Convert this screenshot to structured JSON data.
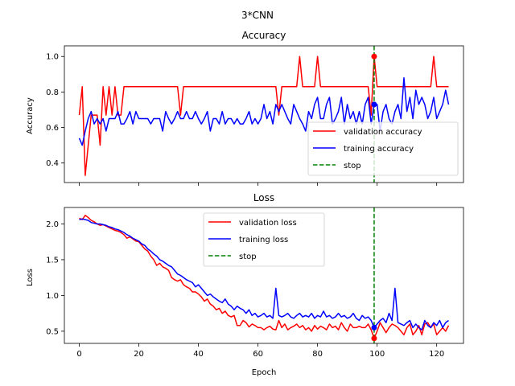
{
  "suptitle": "3*CNN",
  "chart_data": [
    {
      "type": "line",
      "title": "Accuracy",
      "xlabel": "",
      "ylabel": "Accuracy",
      "xlim": [
        -5,
        129
      ],
      "ylim": [
        0.29,
        1.06
      ],
      "xticks": [
        0,
        20,
        40,
        60,
        80,
        100,
        120
      ],
      "show_xtick_labels": false,
      "yticks": [
        0.4,
        0.6,
        0.8,
        1.0
      ],
      "ytick_labels": [
        "0.4",
        "0.6",
        "0.8",
        "1.0"
      ],
      "legend_position": "lower-right",
      "series": [
        {
          "name": "validation accuracy",
          "color": "#ff0000",
          "style": "solid",
          "x": [
            0,
            1,
            2,
            3,
            4,
            5,
            6,
            7,
            8,
            9,
            10,
            11,
            12,
            13,
            14,
            15,
            16,
            17,
            18,
            19,
            20,
            21,
            22,
            23,
            24,
            25,
            26,
            27,
            28,
            29,
            30,
            31,
            32,
            33,
            34,
            35,
            36,
            37,
            38,
            39,
            40,
            41,
            42,
            43,
            44,
            45,
            46,
            47,
            48,
            49,
            50,
            51,
            52,
            53,
            54,
            55,
            56,
            57,
            58,
            59,
            60,
            61,
            62,
            63,
            64,
            65,
            66,
            67,
            68,
            69,
            70,
            71,
            72,
            73,
            74,
            75,
            76,
            77,
            78,
            79,
            80,
            81,
            82,
            83,
            84,
            85,
            86,
            87,
            88,
            89,
            90,
            91,
            92,
            93,
            94,
            95,
            96,
            97,
            98,
            99,
            100,
            101,
            102,
            103,
            104,
            105,
            106,
            107,
            108,
            109,
            110,
            111,
            112,
            113,
            114,
            115,
            116,
            117,
            118,
            119,
            120,
            121,
            122,
            123,
            124
          ],
          "values": [
            0.67,
            0.83,
            0.33,
            0.5,
            0.67,
            0.67,
            0.67,
            0.5,
            0.83,
            0.67,
            0.83,
            0.67,
            0.83,
            0.67,
            0.67,
            0.83,
            0.83,
            0.83,
            0.83,
            0.83,
            0.83,
            0.83,
            0.83,
            0.83,
            0.83,
            0.83,
            0.83,
            0.83,
            0.83,
            0.83,
            0.83,
            0.83,
            0.83,
            0.83,
            0.67,
            0.83,
            0.83,
            0.83,
            0.83,
            0.83,
            0.83,
            0.83,
            0.83,
            0.83,
            0.83,
            0.83,
            0.83,
            0.83,
            0.83,
            0.83,
            0.83,
            0.83,
            0.83,
            0.83,
            0.83,
            0.83,
            0.83,
            0.83,
            0.83,
            0.83,
            0.83,
            0.83,
            0.83,
            0.83,
            0.83,
            0.83,
            0.83,
            0.67,
            0.83,
            0.83,
            0.83,
            0.83,
            0.83,
            0.83,
            1.0,
            0.83,
            0.83,
            0.83,
            0.83,
            0.83,
            1.0,
            0.83,
            0.83,
            0.83,
            0.83,
            0.83,
            0.83,
            0.83,
            0.83,
            0.83,
            0.83,
            0.83,
            0.83,
            0.83,
            0.83,
            0.83,
            0.83,
            0.83,
            0.67,
            1.0,
            0.83,
            0.83,
            0.83,
            0.83,
            0.83,
            0.83,
            0.83,
            0.83,
            0.83,
            0.83,
            0.83,
            0.83,
            0.83,
            0.83,
            0.83,
            0.83,
            0.83,
            0.83,
            0.83,
            1.0,
            0.83,
            0.83,
            0.83,
            0.83,
            0.83
          ]
        },
        {
          "name": "training accuracy",
          "color": "#0000ff",
          "style": "solid",
          "x": [
            0,
            1,
            2,
            3,
            4,
            5,
            6,
            7,
            8,
            9,
            10,
            11,
            12,
            13,
            14,
            15,
            16,
            17,
            18,
            19,
            20,
            21,
            22,
            23,
            24,
            25,
            26,
            27,
            28,
            29,
            30,
            31,
            32,
            33,
            34,
            35,
            36,
            37,
            38,
            39,
            40,
            41,
            42,
            43,
            44,
            45,
            46,
            47,
            48,
            49,
            50,
            51,
            52,
            53,
            54,
            55,
            56,
            57,
            58,
            59,
            60,
            61,
            62,
            63,
            64,
            65,
            66,
            67,
            68,
            69,
            70,
            71,
            72,
            73,
            74,
            75,
            76,
            77,
            78,
            79,
            80,
            81,
            82,
            83,
            84,
            85,
            86,
            87,
            88,
            89,
            90,
            91,
            92,
            93,
            94,
            95,
            96,
            97,
            98,
            99,
            100,
            101,
            102,
            103,
            104,
            105,
            106,
            107,
            108,
            109,
            110,
            111,
            112,
            113,
            114,
            115,
            116,
            117,
            118,
            119,
            120,
            121,
            122,
            123,
            124
          ],
          "values": [
            0.54,
            0.5,
            0.58,
            0.65,
            0.69,
            0.62,
            0.65,
            0.62,
            0.65,
            0.58,
            0.65,
            0.65,
            0.65,
            0.69,
            0.62,
            0.62,
            0.65,
            0.69,
            0.62,
            0.69,
            0.65,
            0.65,
            0.65,
            0.65,
            0.62,
            0.65,
            0.65,
            0.65,
            0.58,
            0.69,
            0.65,
            0.62,
            0.65,
            0.69,
            0.65,
            0.65,
            0.69,
            0.65,
            0.65,
            0.69,
            0.65,
            0.62,
            0.65,
            0.69,
            0.58,
            0.65,
            0.65,
            0.62,
            0.69,
            0.62,
            0.65,
            0.65,
            0.62,
            0.65,
            0.62,
            0.62,
            0.65,
            0.69,
            0.62,
            0.65,
            0.62,
            0.65,
            0.73,
            0.65,
            0.69,
            0.62,
            0.73,
            0.69,
            0.73,
            0.69,
            0.65,
            0.62,
            0.73,
            0.69,
            0.65,
            0.62,
            0.58,
            0.69,
            0.65,
            0.73,
            0.77,
            0.65,
            0.65,
            0.73,
            0.77,
            0.62,
            0.65,
            0.69,
            0.77,
            0.62,
            0.73,
            0.65,
            0.69,
            0.62,
            0.69,
            0.62,
            0.73,
            0.77,
            0.62,
            0.73,
            0.73,
            0.58,
            0.69,
            0.73,
            0.65,
            0.62,
            0.69,
            0.73,
            0.65,
            0.88,
            0.69,
            0.77,
            0.65,
            0.81,
            0.73,
            0.77,
            0.73,
            0.65,
            0.69,
            0.77,
            0.65,
            0.69,
            0.73,
            0.81,
            0.73
          ]
        },
        {
          "name": "stop",
          "color": "#008000",
          "style": "dashed",
          "vline_x": 99
        }
      ],
      "markers": [
        {
          "x": 99,
          "y": 1.0,
          "color": "#ff0000"
        },
        {
          "x": 99,
          "y": 0.73,
          "color": "#0000ff"
        }
      ]
    },
    {
      "type": "line",
      "title": "Loss",
      "xlabel": "Epoch",
      "ylabel": "Loss",
      "xlim": [
        -5,
        129
      ],
      "ylim": [
        0.33,
        2.23
      ],
      "xticks": [
        0,
        20,
        40,
        60,
        80,
        100,
        120
      ],
      "show_xtick_labels": true,
      "yticks": [
        0.5,
        1.0,
        1.5,
        2.0
      ],
      "ytick_labels": [
        "0.5",
        "1.0",
        "1.5",
        "2.0"
      ],
      "legend_position": "upper-center",
      "series": [
        {
          "name": "validation loss",
          "color": "#ff0000",
          "style": "solid",
          "x": [
            0,
            1,
            2,
            3,
            4,
            5,
            6,
            7,
            8,
            9,
            10,
            11,
            12,
            13,
            14,
            15,
            16,
            17,
            18,
            19,
            20,
            21,
            22,
            23,
            24,
            25,
            26,
            27,
            28,
            29,
            30,
            31,
            32,
            33,
            34,
            35,
            36,
            37,
            38,
            39,
            40,
            41,
            42,
            43,
            44,
            45,
            46,
            47,
            48,
            49,
            50,
            51,
            52,
            53,
            54,
            55,
            56,
            57,
            58,
            59,
            60,
            61,
            62,
            63,
            64,
            65,
            66,
            67,
            68,
            69,
            70,
            71,
            72,
            73,
            74,
            75,
            76,
            77,
            78,
            79,
            80,
            81,
            82,
            83,
            84,
            85,
            86,
            87,
            88,
            89,
            90,
            91,
            92,
            93,
            94,
            95,
            96,
            97,
            98,
            99,
            100,
            101,
            102,
            103,
            104,
            105,
            106,
            107,
            108,
            109,
            110,
            111,
            112,
            113,
            114,
            115,
            116,
            117,
            118,
            119,
            120,
            121,
            122,
            123,
            124
          ],
          "values": [
            2.08,
            2.06,
            2.12,
            2.09,
            2.05,
            2.03,
            2.0,
            1.98,
            1.99,
            1.97,
            1.95,
            1.93,
            1.91,
            1.9,
            1.88,
            1.85,
            1.8,
            1.82,
            1.79,
            1.76,
            1.75,
            1.7,
            1.65,
            1.62,
            1.55,
            1.5,
            1.42,
            1.45,
            1.4,
            1.38,
            1.35,
            1.25,
            1.22,
            1.2,
            1.22,
            1.15,
            1.12,
            1.1,
            1.05,
            1.05,
            1.02,
            0.98,
            0.92,
            0.95,
            0.88,
            0.85,
            0.8,
            0.82,
            0.75,
            0.78,
            0.72,
            0.7,
            0.72,
            0.58,
            0.58,
            0.65,
            0.62,
            0.56,
            0.6,
            0.58,
            0.55,
            0.55,
            0.52,
            0.55,
            0.57,
            0.53,
            0.52,
            0.65,
            0.55,
            0.6,
            0.52,
            0.55,
            0.57,
            0.6,
            0.55,
            0.58,
            0.52,
            0.55,
            0.5,
            0.58,
            0.53,
            0.57,
            0.55,
            0.52,
            0.6,
            0.55,
            0.57,
            0.52,
            0.62,
            0.55,
            0.5,
            0.6,
            0.55,
            0.55,
            0.57,
            0.55,
            0.55,
            0.6,
            0.52,
            0.4,
            0.5,
            0.62,
            0.55,
            0.48,
            0.55,
            0.6,
            0.58,
            0.55,
            0.5,
            0.45,
            0.55,
            0.6,
            0.45,
            0.5,
            0.58,
            0.45,
            0.6,
            0.62,
            0.55,
            0.6,
            0.45,
            0.5,
            0.55,
            0.5,
            0.58
          ]
        },
        {
          "name": "training loss",
          "color": "#0000ff",
          "style": "solid",
          "x": [
            0,
            1,
            2,
            3,
            4,
            5,
            6,
            7,
            8,
            9,
            10,
            11,
            12,
            13,
            14,
            15,
            16,
            17,
            18,
            19,
            20,
            21,
            22,
            23,
            24,
            25,
            26,
            27,
            28,
            29,
            30,
            31,
            32,
            33,
            34,
            35,
            36,
            37,
            38,
            39,
            40,
            41,
            42,
            43,
            44,
            45,
            46,
            47,
            48,
            49,
            50,
            51,
            52,
            53,
            54,
            55,
            56,
            57,
            58,
            59,
            60,
            61,
            62,
            63,
            64,
            65,
            66,
            67,
            68,
            69,
            70,
            71,
            72,
            73,
            74,
            75,
            76,
            77,
            78,
            79,
            80,
            81,
            82,
            83,
            84,
            85,
            86,
            87,
            88,
            89,
            90,
            91,
            92,
            93,
            94,
            95,
            96,
            97,
            98,
            99,
            100,
            101,
            102,
            103,
            104,
            105,
            106,
            107,
            108,
            109,
            110,
            111,
            112,
            113,
            114,
            115,
            116,
            117,
            118,
            119,
            120,
            121,
            122,
            123,
            124
          ],
          "values": [
            2.06,
            2.07,
            2.06,
            2.05,
            2.02,
            2.01,
            2.0,
            2.0,
            1.99,
            1.98,
            1.96,
            1.95,
            1.93,
            1.92,
            1.9,
            1.88,
            1.85,
            1.83,
            1.8,
            1.78,
            1.76,
            1.72,
            1.7,
            1.65,
            1.62,
            1.58,
            1.55,
            1.5,
            1.48,
            1.45,
            1.42,
            1.4,
            1.35,
            1.3,
            1.28,
            1.25,
            1.22,
            1.2,
            1.18,
            1.12,
            1.15,
            1.1,
            1.05,
            1.0,
            1.02,
            0.98,
            0.95,
            0.92,
            0.9,
            0.95,
            0.88,
            0.85,
            0.8,
            0.85,
            0.82,
            0.8,
            0.75,
            0.8,
            0.72,
            0.75,
            0.7,
            0.72,
            0.75,
            0.7,
            0.72,
            0.68,
            1.1,
            0.72,
            0.7,
            0.72,
            0.75,
            0.7,
            0.68,
            0.72,
            0.75,
            0.7,
            0.72,
            0.7,
            0.75,
            0.68,
            0.72,
            0.7,
            0.78,
            0.7,
            0.72,
            0.68,
            0.7,
            0.75,
            0.7,
            0.72,
            0.68,
            0.7,
            0.75,
            0.68,
            0.65,
            0.72,
            0.68,
            0.7,
            0.65,
            0.55,
            0.6,
            0.65,
            0.68,
            0.62,
            0.75,
            0.65,
            1.1,
            0.62,
            0.6,
            0.58,
            0.62,
            0.65,
            0.55,
            0.6,
            0.55,
            0.52,
            0.65,
            0.58,
            0.55,
            0.62,
            0.58,
            0.65,
            0.55,
            0.62,
            0.65
          ]
        },
        {
          "name": "stop",
          "color": "#008000",
          "style": "dashed",
          "vline_x": 99
        }
      ],
      "markers": [
        {
          "x": 99,
          "y": 0.4,
          "color": "#ff0000"
        },
        {
          "x": 99,
          "y": 0.55,
          "color": "#0000ff"
        }
      ]
    }
  ]
}
